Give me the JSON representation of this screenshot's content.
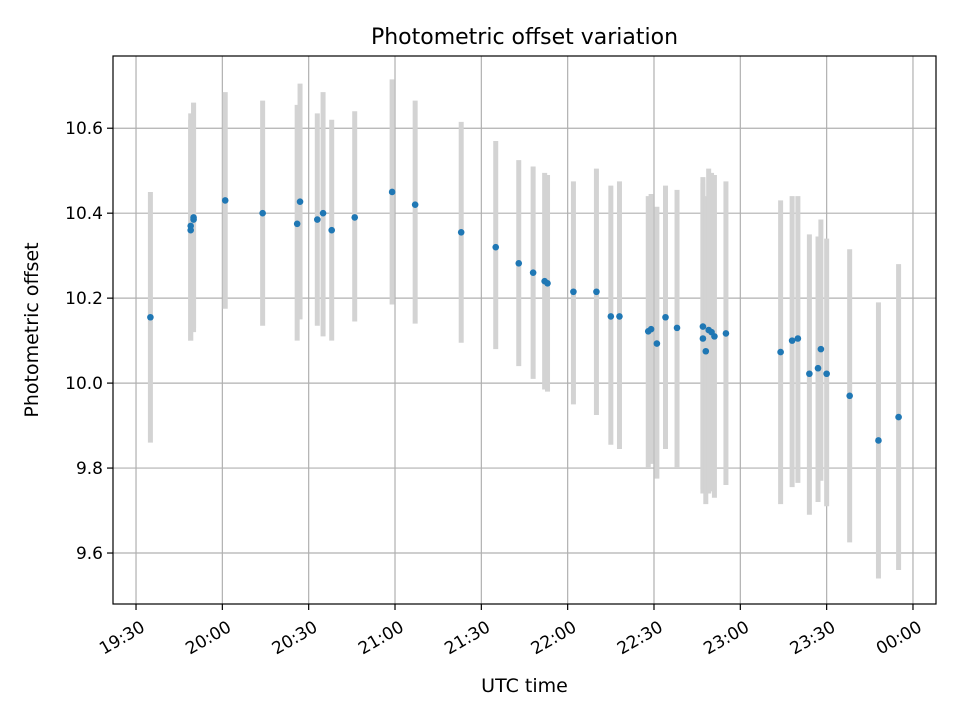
{
  "chart_data": {
    "type": "scatter",
    "title": "Photometric offset variation",
    "xlabel": "UTC time",
    "ylabel": "Photometric offset",
    "x_unit": "UTC time (HH:MM)",
    "xlim": [
      "19:22",
      "00:08"
    ],
    "ylim": [
      9.48,
      10.77
    ],
    "x_ticks": [
      "19:30",
      "20:00",
      "20:30",
      "21:00",
      "21:30",
      "22:00",
      "22:30",
      "23:00",
      "23:30",
      "00:00"
    ],
    "y_ticks": [
      9.6,
      9.8,
      10.0,
      10.2,
      10.4,
      10.6
    ],
    "y_tick_labels": [
      "9.6",
      "9.8",
      "10.0",
      "10.2",
      "10.4",
      "10.6"
    ],
    "grid": true,
    "colors": {
      "point": "#1f77b4",
      "errorbar": "#d3d3d3",
      "grid": "#b0b0b0"
    },
    "series": [
      {
        "x": [
          "19:35",
          "19:49",
          "19:49",
          "19:50",
          "19:50",
          "20:01",
          "20:14",
          "20:26",
          "20:27",
          "20:33",
          "20:35",
          "20:38",
          "20:46",
          "20:59",
          "21:07",
          "21:23",
          "21:35",
          "21:43",
          "21:48",
          "21:52",
          "21:53",
          "22:02",
          "22:10",
          "22:15",
          "22:18",
          "22:28",
          "22:29",
          "22:31",
          "22:34",
          "22:38",
          "22:47",
          "22:47",
          "22:48",
          "22:49",
          "22:50",
          "22:51",
          "22:55",
          "23:14",
          "23:18",
          "23:20",
          "23:24",
          "23:27",
          "23:28",
          "23:30",
          "23:38",
          "23:48",
          "23:55"
        ],
        "y": [
          10.155,
          10.37,
          10.36,
          10.385,
          10.39,
          10.43,
          10.4,
          10.375,
          10.427,
          10.385,
          10.4,
          10.36,
          10.39,
          10.45,
          10.42,
          10.355,
          10.32,
          10.282,
          10.26,
          10.24,
          10.235,
          10.215,
          10.215,
          10.157,
          10.157,
          10.122,
          10.127,
          10.093,
          10.155,
          10.13,
          10.133,
          10.105,
          10.075,
          10.125,
          10.12,
          10.11,
          10.117,
          10.073,
          10.1,
          10.105,
          10.022,
          10.035,
          10.08,
          10.022,
          9.97,
          9.865,
          9.92
        ],
        "yerr_low": [
          9.86,
          10.1,
          10.1,
          10.12,
          10.13,
          10.175,
          10.135,
          10.1,
          10.15,
          10.135,
          10.11,
          10.1,
          10.145,
          10.185,
          10.14,
          10.095,
          10.08,
          10.04,
          10.01,
          9.985,
          9.98,
          9.95,
          9.925,
          9.855,
          9.845,
          9.8,
          9.81,
          9.775,
          9.845,
          9.8,
          9.75,
          9.74,
          9.715,
          9.74,
          9.745,
          9.73,
          9.76,
          9.715,
          9.755,
          9.765,
          9.69,
          9.72,
          9.77,
          9.71,
          9.625,
          9.54,
          9.56
        ],
        "yerr_high": [
          10.45,
          10.635,
          10.62,
          10.66,
          10.66,
          10.685,
          10.665,
          10.655,
          10.705,
          10.635,
          10.685,
          10.62,
          10.64,
          10.715,
          10.665,
          10.615,
          10.57,
          10.525,
          10.51,
          10.495,
          10.49,
          10.475,
          10.505,
          10.465,
          10.475,
          10.44,
          10.445,
          10.415,
          10.465,
          10.455,
          10.485,
          10.47,
          10.44,
          10.505,
          10.495,
          10.49,
          10.475,
          10.43,
          10.44,
          10.44,
          10.35,
          10.345,
          10.385,
          10.34,
          10.315,
          10.19,
          10.28
        ]
      }
    ]
  }
}
